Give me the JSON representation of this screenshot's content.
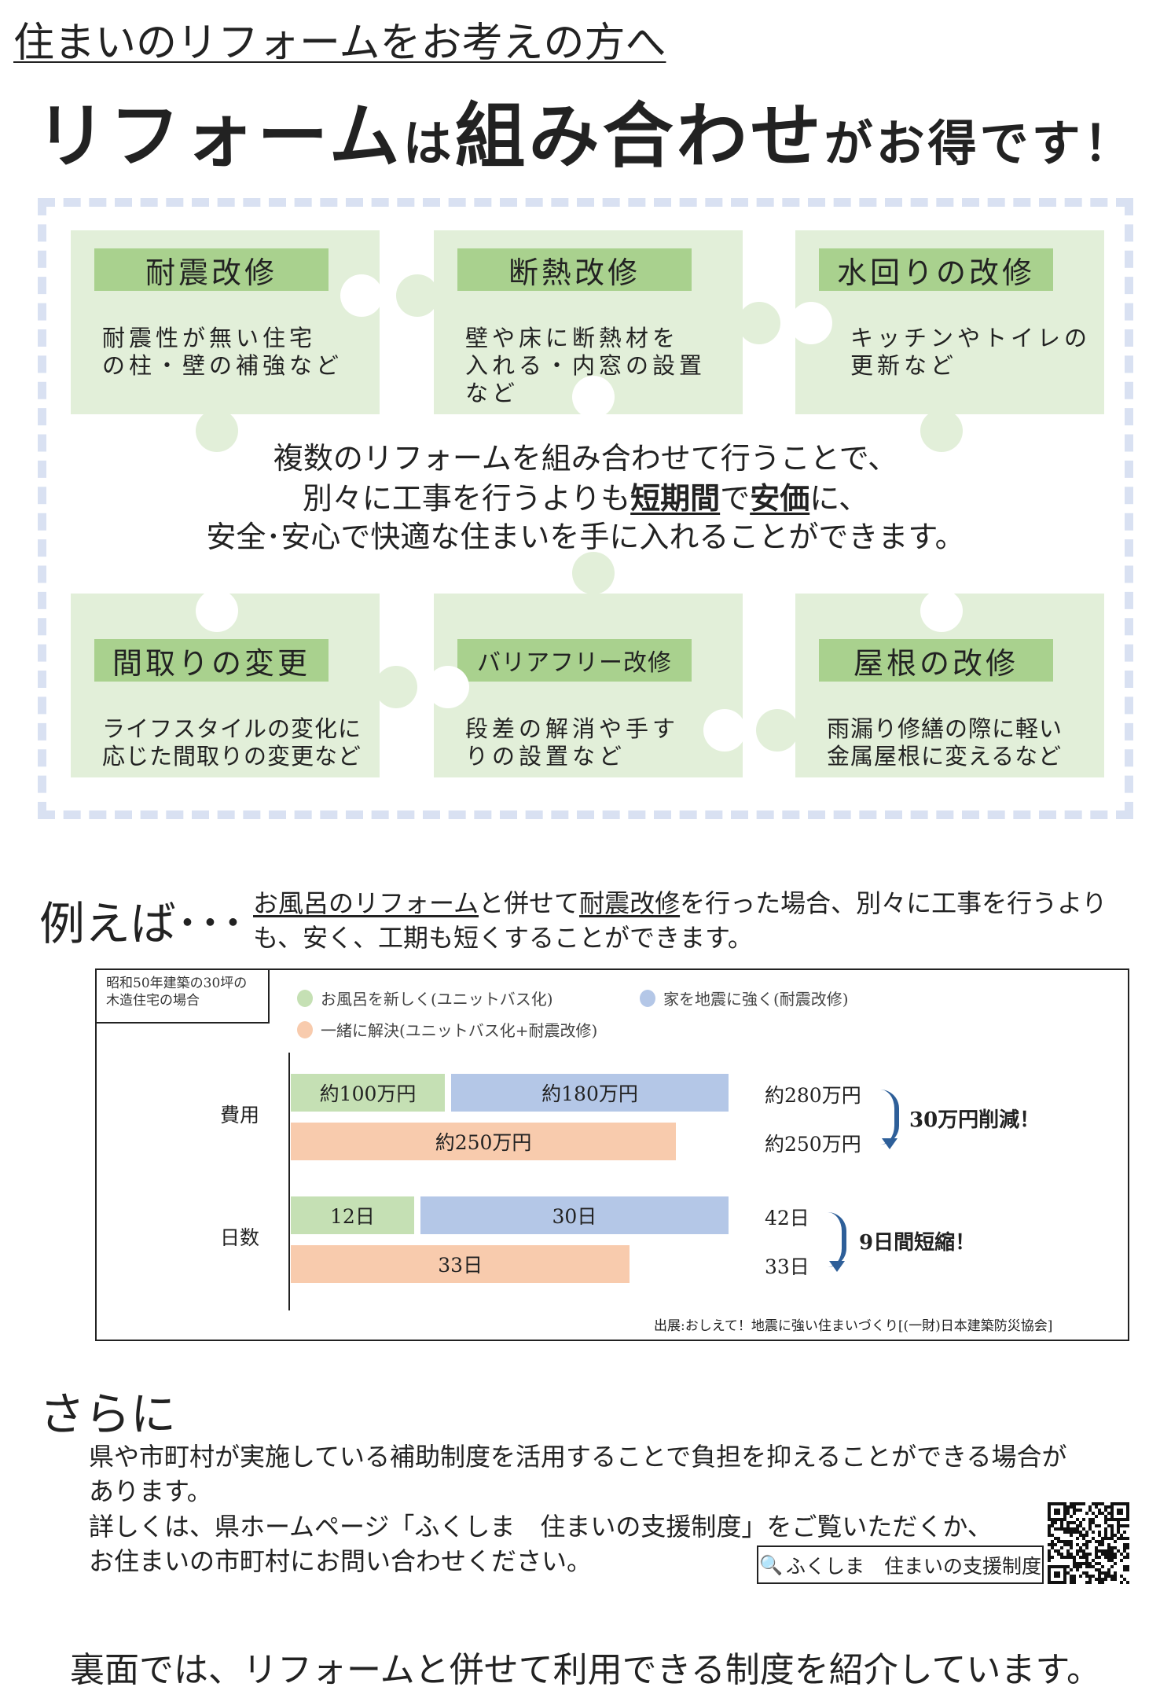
{
  "header": {
    "subtitle": "住まいのリフォームをお考えの方へ",
    "title_parts": [
      "リフォーム",
      "は",
      "組み合わせ",
      "がお得です！"
    ]
  },
  "colors": {
    "piece": "#e2efd9",
    "label": "#a9d18e",
    "dash": "#d9e1f2",
    "bath": "#c5e0b4",
    "quake": "#b4c7e7",
    "combined": "#f8cbad",
    "arrow": "#2e5f99"
  },
  "pieces": [
    {
      "label": "耐震改修",
      "desc": "耐震性が無い住宅\nの柱・壁の補強など"
    },
    {
      "label": "断熱改修",
      "desc": "壁や床に断熱材を\n入れる・内窓の設置\nなど"
    },
    {
      "label": "水回りの改修",
      "desc": "キッチンやトイレの\n更新など"
    },
    {
      "label": "間取りの変更",
      "desc": "ライフスタイルの変化に\n応じた間取りの変更など"
    },
    {
      "label": "バリアフリー改修",
      "desc": "段差の解消や手す\nりの設置など"
    },
    {
      "label": "屋根の改修",
      "desc": "雨漏り修繕の際に軽い\n金属屋根に変えるなど"
    }
  ],
  "center": {
    "line1": "複数のリフォームを組み合わせて行うことで、",
    "line2_a": "別々に工事を行うよりも",
    "line2_b": "短期間",
    "line2_c": "で",
    "line2_d": "安価",
    "line2_e": "に、",
    "line3": "安全･安心で快適な住まいを手に入れることができます。"
  },
  "example": {
    "heading": "例えば･･･",
    "p1_a": "お風呂のリフォーム",
    "p1_b": "と併せて",
    "p1_c": "耐震改修",
    "p1_d": "を行った場合、別々に工事を行うより",
    "p2": "も、安く、工期も短くすることができます。"
  },
  "chart_data": {
    "type": "bar",
    "note": "昭和50年建築の30坪の木造住宅の場合",
    "legend": [
      "お風呂を新しく(ユニットバス化)",
      "家を地震に強く(耐震改修)",
      "一緒に解決(ユニットバス化+耐震改修)"
    ],
    "groups": [
      {
        "category": "費用",
        "separate": [
          {
            "series": "bath",
            "value": 100,
            "label": "約100万円"
          },
          {
            "series": "quake",
            "value": 180,
            "label": "約180万円"
          }
        ],
        "combined": {
          "value": 250,
          "label": "約250万円"
        },
        "total_separate_label": "約280万円",
        "total_combined_label": "約250万円",
        "saving": "30万円削減！"
      },
      {
        "category": "日数",
        "separate": [
          {
            "series": "bath",
            "value": 12,
            "label": "12日"
          },
          {
            "series": "quake",
            "value": 30,
            "label": "30日"
          }
        ],
        "combined": {
          "value": 33,
          "label": "33日"
        },
        "total_separate_label": "42日",
        "total_combined_label": "33日",
        "saving": "9日間短縮！"
      }
    ],
    "source": "出展:おしえて！地震に強い住まいづくり[(一財)日本建築防災協会]"
  },
  "more": {
    "heading": "さらに",
    "l1": "県や市町村が実施している補助制度を活用することで負担を抑えることができる場合が",
    "l2": "あります。",
    "l3": "詳しくは、県ホームページ「ふくしま　住まいの支援制度」をご覧いただくか、",
    "l4": "お住まいの市町村にお問い合わせください。",
    "search": "ふくしま　住まいの支援制度"
  },
  "footer": "裏面では、リフォームと併せて利用できる制度を紹介しています。"
}
